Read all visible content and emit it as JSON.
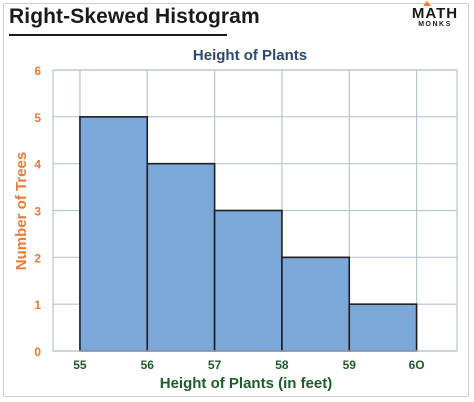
{
  "page": {
    "title": "Right-Skewed Histogram",
    "logo": {
      "word": "MATH",
      "sub": "MONKS"
    }
  },
  "colors": {
    "bar_fill": "#7ba7d9",
    "bar_stroke": "#1f1f1f",
    "grid": "#b8c4d2",
    "axis": "#1f1f1f",
    "chart_title": "#2b4a6e",
    "y_label": "#e87a3a",
    "x_label": "#1f5c2b",
    "x_ticks": "#1f5c2b",
    "y_ticks": "#e87a3a"
  },
  "chart_data": {
    "type": "bar",
    "title": "Height of Plants",
    "xlabel": "Height of Plants (in feet)",
    "ylabel": "Number of Trees",
    "x_ticks": [
      "55",
      "56",
      "57",
      "58",
      "59",
      "6O"
    ],
    "y_ticks": [
      "0",
      "1",
      "2",
      "3",
      "4",
      "5",
      "6"
    ],
    "bins": [
      {
        "from": 55,
        "to": 56,
        "value": 5
      },
      {
        "from": 56,
        "to": 57,
        "value": 4
      },
      {
        "from": 57,
        "to": 58,
        "value": 3
      },
      {
        "from": 58,
        "to": 59,
        "value": 2
      },
      {
        "from": 59,
        "to": 60,
        "value": 1
      }
    ],
    "xlim": [
      54.6,
      60.6
    ],
    "ylim": [
      0,
      6
    ],
    "grid": true
  }
}
